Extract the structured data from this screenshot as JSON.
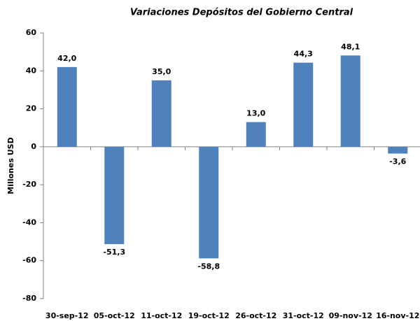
{
  "chart_data": {
    "type": "bar",
    "title": "Variaciones Depósitos del Gobierno Central",
    "y_label": "Millones USD",
    "categories": [
      "30-sep-12",
      "05-oct-12",
      "11-oct-12",
      "19-oct-12",
      "26-oct-12",
      "31-oct-12",
      "09-nov-12",
      "16-nov-12"
    ],
    "values": [
      42.0,
      -51.3,
      35.0,
      -58.8,
      13.0,
      44.3,
      48.1,
      -3.6
    ],
    "value_labels": [
      "42,0",
      "-51,3",
      "35,0",
      "-58,8",
      "13,0",
      "44,3",
      "48,1",
      "-3,6"
    ],
    "color": "#4f81bd",
    "ylim": [
      -80,
      60
    ],
    "yticks": [
      -80,
      -60,
      -40,
      -20,
      0,
      20,
      40,
      60
    ],
    "grid": false
  }
}
